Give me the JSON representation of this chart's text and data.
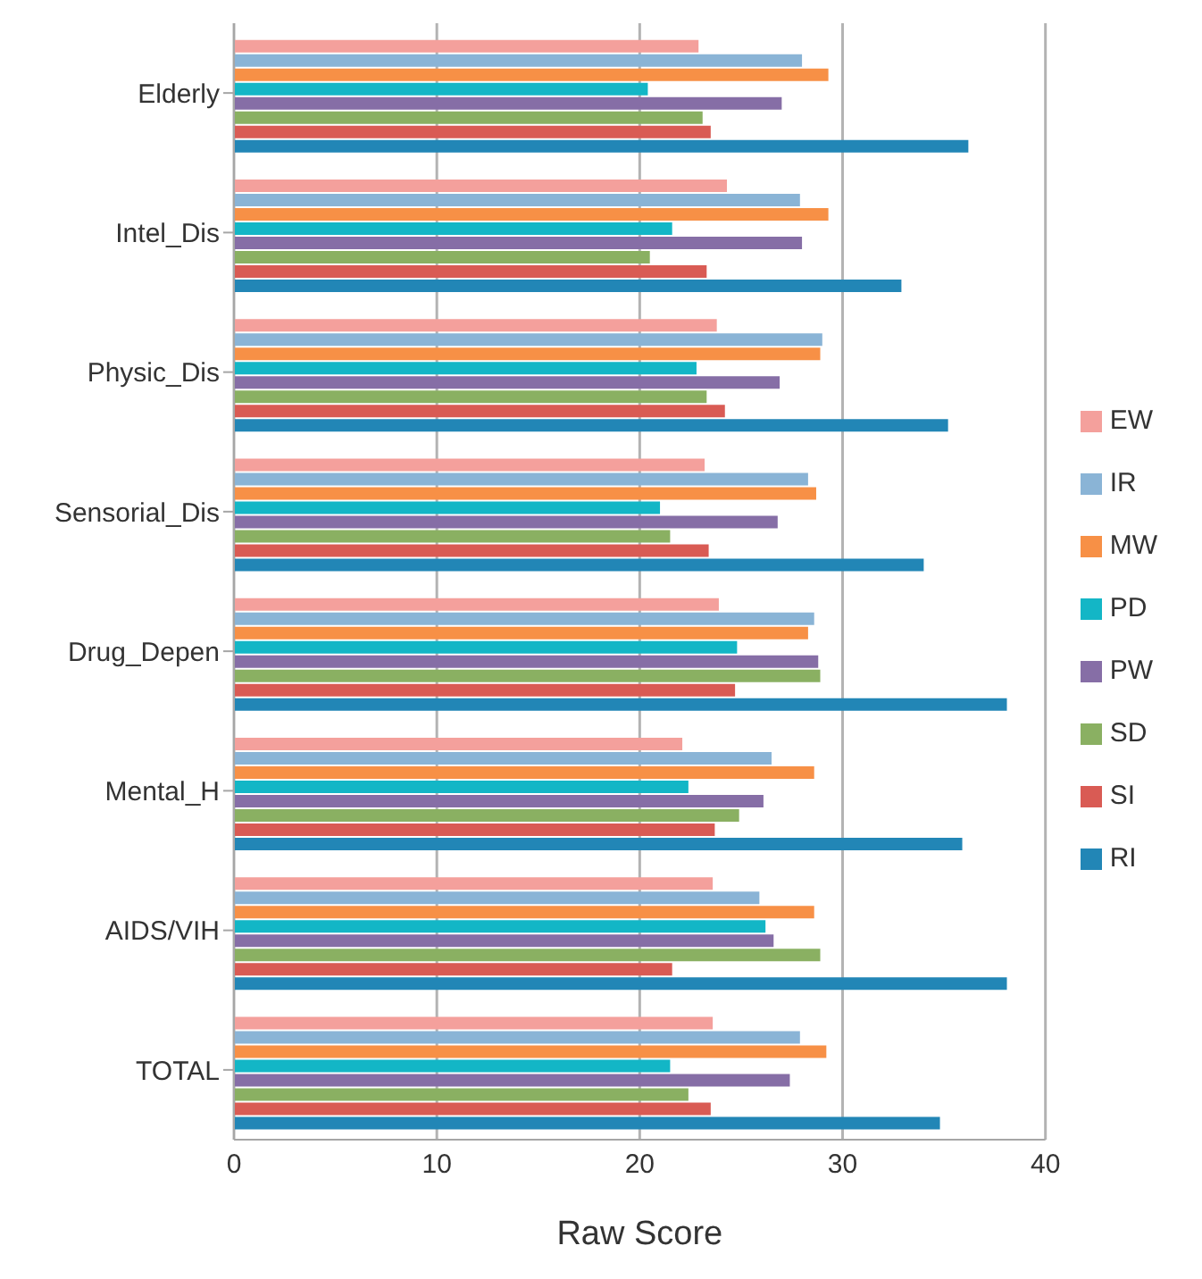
{
  "chart_data": {
    "type": "bar",
    "orientation": "horizontal",
    "xlabel": "Raw Score",
    "categories": [
      "Elderly",
      "Intel_Dis",
      "Physic_Dis",
      "Sensorial_Dis",
      "Drug_Depen",
      "Mental_H",
      "AIDS/VIH",
      "TOTAL"
    ],
    "series": [
      {
        "name": "EW",
        "color": "#f4a09c",
        "values": [
          22.9,
          24.3,
          23.8,
          23.2,
          23.9,
          22.1,
          23.6,
          23.6
        ]
      },
      {
        "name": "IR",
        "color": "#8ab4d6",
        "values": [
          28.0,
          27.9,
          29.0,
          28.3,
          28.6,
          26.5,
          25.9,
          27.9
        ]
      },
      {
        "name": "MW",
        "color": "#f79046",
        "values": [
          29.3,
          29.3,
          28.9,
          28.7,
          28.3,
          28.6,
          28.6,
          29.2
        ]
      },
      {
        "name": "PD",
        "color": "#13b6c6",
        "values": [
          20.4,
          21.6,
          22.8,
          21.0,
          24.8,
          22.4,
          26.2,
          21.5
        ]
      },
      {
        "name": "PW",
        "color": "#866ea6",
        "values": [
          27.0,
          28.0,
          26.9,
          26.8,
          28.8,
          26.1,
          26.6,
          27.4
        ]
      },
      {
        "name": "SD",
        "color": "#8ab062",
        "values": [
          23.1,
          20.5,
          23.3,
          21.5,
          28.9,
          24.9,
          28.9,
          22.4
        ]
      },
      {
        "name": "SI",
        "color": "#d95b54",
        "values": [
          23.5,
          23.3,
          24.2,
          23.4,
          24.7,
          23.7,
          21.6,
          23.5
        ]
      },
      {
        "name": "RI",
        "color": "#2286b6",
        "values": [
          36.2,
          32.9,
          35.2,
          34.0,
          38.1,
          35.9,
          38.1,
          34.8
        ]
      }
    ],
    "xlim": [
      0,
      40
    ],
    "xticks": [
      0,
      10,
      20,
      30,
      40
    ],
    "grid": "x",
    "legend": "right"
  }
}
